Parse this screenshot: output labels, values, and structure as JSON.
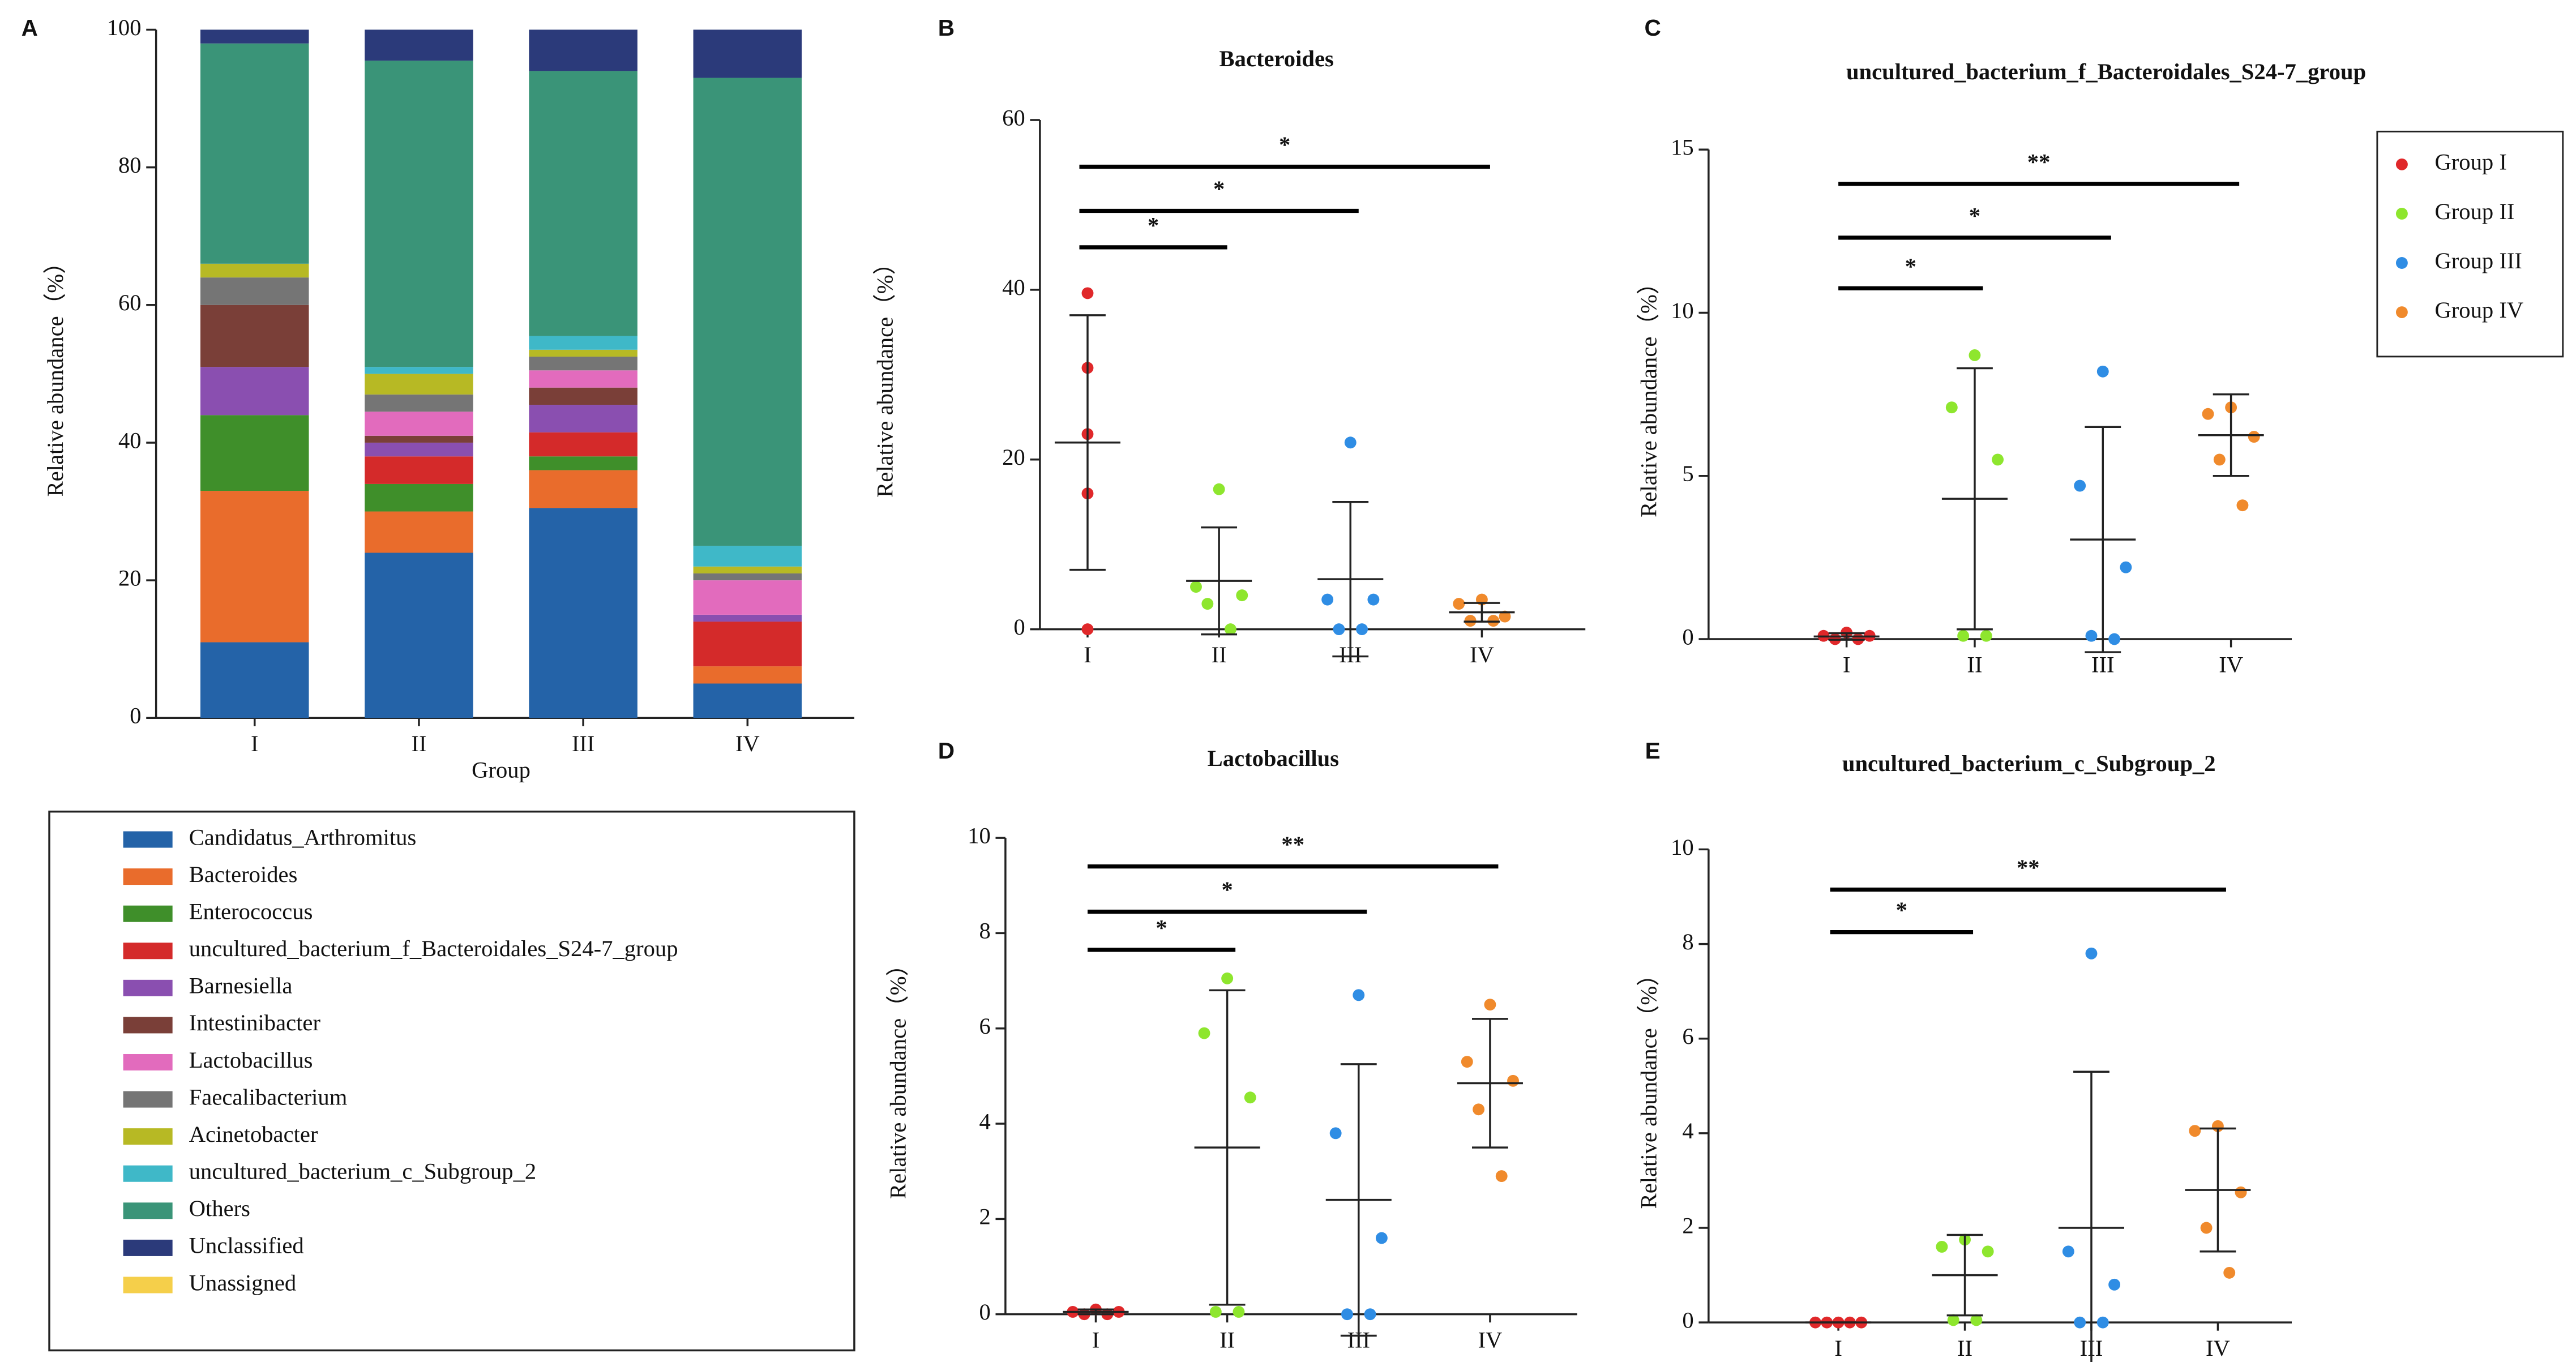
{
  "chart_data": [
    {
      "type": "stacked-bar",
      "label": "A",
      "ylabel": "Relative abundance（%）",
      "xlabel": "Group",
      "categories": [
        "I",
        "II",
        "III",
        "IV"
      ],
      "ylim": [
        0,
        100
      ],
      "yticks": [
        0,
        20,
        40,
        60,
        80,
        100
      ],
      "series": [
        {
          "name": "Candidatus_Arthromitus",
          "color": "#2463a8",
          "values": [
            11,
            24,
            30.5,
            5
          ]
        },
        {
          "name": "Bacteroides",
          "color": "#e96c2c",
          "values": [
            22,
            6,
            5.5,
            2.5
          ]
        },
        {
          "name": "Enterococcus",
          "color": "#3f8f2a",
          "values": [
            11,
            4,
            2,
            0
          ]
        },
        {
          "name": "uncultured_bacterium_f_Bacteroidales_S24-7_group",
          "color": "#d42a2a",
          "values": [
            0,
            4,
            3.5,
            6.5
          ]
        },
        {
          "name": "Barnesiella",
          "color": "#8a4fb0",
          "values": [
            7,
            2,
            4,
            1
          ]
        },
        {
          "name": "Intestinibacter",
          "color": "#7a3f38",
          "values": [
            9,
            1,
            2.5,
            0
          ]
        },
        {
          "name": "Lactobacillus",
          "color": "#e26bbd",
          "values": [
            0,
            3.5,
            2.5,
            5
          ]
        },
        {
          "name": "Faecalibacterium",
          "color": "#757575",
          "values": [
            4,
            2.5,
            2,
            1
          ]
        },
        {
          "name": "Acinetobacter",
          "color": "#b7b924",
          "values": [
            2,
            3,
            1,
            1
          ]
        },
        {
          "name": "uncultured_bacterium_c_Subgroup_2",
          "color": "#3fb8c8",
          "values": [
            0,
            1,
            2,
            3
          ]
        },
        {
          "name": "Others",
          "color": "#3a9478",
          "values": [
            32,
            44.5,
            38.5,
            68
          ]
        },
        {
          "name": "Unclassified",
          "color": "#2b3a7a",
          "values": [
            2,
            4.5,
            6,
            7
          ]
        },
        {
          "name": "Unassigned",
          "color": "#f5cf4a",
          "values": [
            0,
            0,
            0,
            0
          ]
        }
      ]
    },
    {
      "type": "strip",
      "label": "B",
      "title": "Bacteroides",
      "ylabel": "Relative abundance（%）",
      "categories": [
        "I",
        "II",
        "III",
        "IV"
      ],
      "colors": [
        "#e0282a",
        "#8ee62e",
        "#2f8de4",
        "#f08a2c"
      ],
      "ylim": [
        0,
        60
      ],
      "yticks": [
        0,
        20,
        40,
        60
      ],
      "points": [
        [
          39.6,
          30.8,
          23,
          16,
          0
        ],
        [
          16.5,
          5,
          4,
          3,
          0
        ],
        [
          22,
          3.5,
          3.5,
          0,
          0
        ],
        [
          3.5,
          3,
          1.5,
          1,
          1
        ]
      ],
      "means": [
        22,
        5.7,
        5.9,
        2
      ],
      "sds": [
        15,
        6.3,
        9.1,
        1.1
      ],
      "comparisons": [
        {
          "from": "I",
          "to": "II",
          "y": 45,
          "label": "*"
        },
        {
          "from": "I",
          "to": "III",
          "y": 49.3,
          "label": "*"
        },
        {
          "from": "I",
          "to": "IV",
          "y": 54.5,
          "label": "*"
        }
      ]
    },
    {
      "type": "strip",
      "label": "C",
      "title": "uncultured_bacterium_f_Bacteroidales_S24-7_group",
      "ylabel": "Relative abundance（%）",
      "categories": [
        "I",
        "II",
        "III",
        "IV"
      ],
      "colors": [
        "#e0282a",
        "#8ee62e",
        "#2f8de4",
        "#f08a2c"
      ],
      "legend": [
        "Group I",
        "Group II",
        "Group III",
        "Group IV"
      ],
      "ylim": [
        0,
        15
      ],
      "yticks": [
        0,
        5,
        10,
        15
      ],
      "points": [
        [
          0.2,
          0.1,
          0.1,
          0,
          0
        ],
        [
          8.7,
          7.1,
          5.5,
          0.1,
          0.1
        ],
        [
          8.2,
          4.7,
          2.2,
          0.1,
          0
        ],
        [
          7.1,
          6.9,
          6.2,
          5.5,
          4.1
        ]
      ],
      "means": [
        0.08,
        4.3,
        3.05,
        6.25
      ],
      "sds": [
        0.1,
        4,
        3.45,
        1.25
      ],
      "comparisons": [
        {
          "from": "I",
          "to": "II",
          "y": 10.75,
          "label": "*"
        },
        {
          "from": "I",
          "to": "III",
          "y": 12.3,
          "label": "*"
        },
        {
          "from": "I",
          "to": "IV",
          "y": 13.95,
          "label": "**"
        }
      ]
    },
    {
      "type": "strip",
      "label": "D",
      "title": "Lactobacillus",
      "ylabel": "Relative abundance（%）",
      "categories": [
        "I",
        "II",
        "III",
        "IV"
      ],
      "colors": [
        "#e0282a",
        "#8ee62e",
        "#2f8de4",
        "#f08a2c"
      ],
      "ylim": [
        0,
        10
      ],
      "yticks": [
        0,
        2,
        4,
        6,
        8,
        10
      ],
      "points": [
        [
          0.1,
          0.05,
          0.05,
          0,
          0
        ],
        [
          7.05,
          5.9,
          4.55,
          0.05,
          0.05
        ],
        [
          6.7,
          3.8,
          1.6,
          0,
          0
        ],
        [
          6.5,
          5.3,
          4.9,
          4.3,
          2.9
        ]
      ],
      "means": [
        0.05,
        3.5,
        2.4,
        4.85
      ],
      "sds": [
        0.05,
        3.3,
        2.85,
        1.35
      ],
      "comparisons": [
        {
          "from": "I",
          "to": "II",
          "y": 7.65,
          "label": "*"
        },
        {
          "from": "I",
          "to": "III",
          "y": 8.45,
          "label": "*"
        },
        {
          "from": "I",
          "to": "IV",
          "y": 9.4,
          "label": "**"
        }
      ]
    },
    {
      "type": "strip",
      "label": "E",
      "title": "uncultured_bacterium_c_Subgroup_2",
      "ylabel": "Relative abundance（%）",
      "categories": [
        "I",
        "II",
        "III",
        "IV"
      ],
      "colors": [
        "#e0282a",
        "#8ee62e",
        "#2f8de4",
        "#f08a2c"
      ],
      "ylim": [
        0,
        10
      ],
      "yticks": [
        0,
        2,
        4,
        6,
        8,
        10
      ],
      "points": [
        [
          0,
          0,
          0,
          0,
          0
        ],
        [
          1.75,
          1.6,
          1.5,
          0.05,
          0.05
        ],
        [
          7.8,
          1.5,
          0.8,
          0,
          0
        ],
        [
          4.15,
          4.05,
          2.75,
          2,
          1.05
        ]
      ],
      "means": [
        0,
        1,
        2,
        2.8
      ],
      "sds": [
        0,
        0.85,
        3.3,
        1.3
      ],
      "comparisons": [
        {
          "from": "I",
          "to": "II",
          "y": 8.25,
          "label": "*"
        },
        {
          "from": "I",
          "to": "IV",
          "y": 9.15,
          "label": "**"
        }
      ]
    }
  ]
}
